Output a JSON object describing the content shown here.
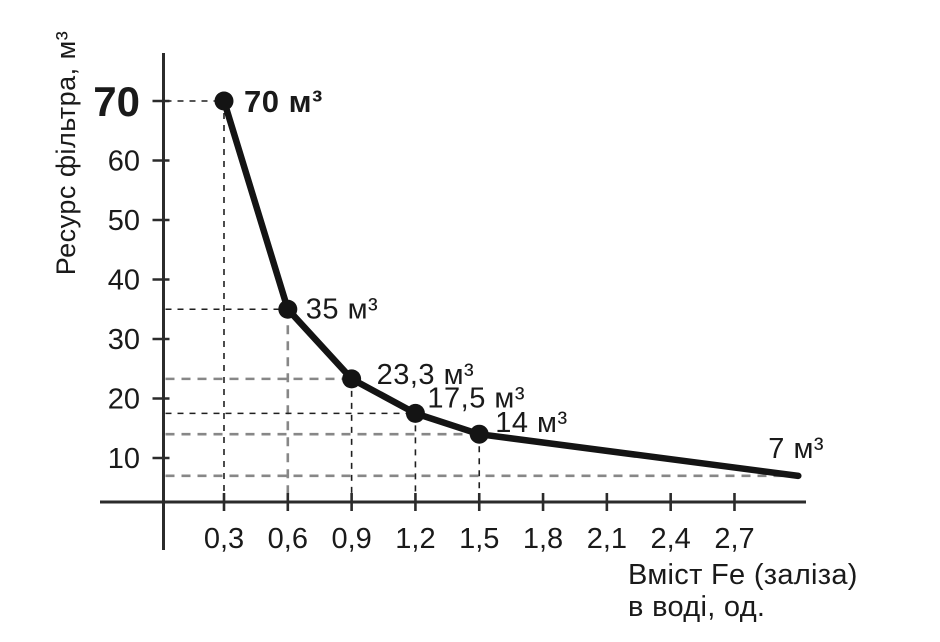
{
  "chart_data": {
    "type": "line",
    "title": "",
    "ylabel": "Ресурс фільтра, м³",
    "xlabel": "Вміст Fe (заліза) в воді, од.",
    "xlabel_line1": "Вміст Fe (заліза)",
    "xlabel_line2": "в воді, од.",
    "x_ticks": [
      {
        "label": "0,3",
        "value": 0.3
      },
      {
        "label": "0,6",
        "value": 0.6
      },
      {
        "label": "0,9",
        "value": 0.9
      },
      {
        "label": "1,2",
        "value": 1.2
      },
      {
        "label": "1,5",
        "value": 1.5
      },
      {
        "label": "1,8",
        "value": 1.8
      },
      {
        "label": "2,1",
        "value": 2.1
      },
      {
        "label": "2,4",
        "value": 2.4
      },
      {
        "label": "2,7",
        "value": 2.7
      }
    ],
    "y_ticks": [
      {
        "label": "70",
        "value": 70,
        "bold": true
      },
      {
        "label": "60",
        "value": 60,
        "bold": false
      },
      {
        "label": "50",
        "value": 50,
        "bold": false
      },
      {
        "label": "40",
        "value": 40,
        "bold": false
      },
      {
        "label": "30",
        "value": 30,
        "bold": false
      },
      {
        "label": "20",
        "value": 20,
        "bold": false
      },
      {
        "label": "10",
        "value": 10,
        "bold": false
      }
    ],
    "points": [
      {
        "x": 0.3,
        "y": 70,
        "label": "70 м³",
        "bold": true,
        "dot": true
      },
      {
        "x": 0.6,
        "y": 35,
        "label": "35 м³",
        "bold": false,
        "dot": true
      },
      {
        "x": 0.9,
        "y": 23.3,
        "label": "23,3 м³",
        "bold": false,
        "dot": true
      },
      {
        "x": 1.2,
        "y": 17.5,
        "label": "17,5 м³",
        "bold": false,
        "dot": true
      },
      {
        "x": 1.5,
        "y": 14,
        "label": "14 м³",
        "bold": false,
        "dot": true
      },
      {
        "x": 3.0,
        "y": 7,
        "label": "7 м³",
        "bold": false,
        "dot": false
      }
    ],
    "x_range_shown": [
      0.3,
      2.7
    ],
    "y_range_shown": [
      10,
      70
    ],
    "grid": "dashed-guides-per-point",
    "legend": "none",
    "colors": {
      "line": "#141414",
      "axis": "#2b2b2b",
      "text": "#1a1a1a",
      "guide_black": "#1f1f1f",
      "guide_gray": "#878787",
      "background": "#ffffff"
    }
  }
}
